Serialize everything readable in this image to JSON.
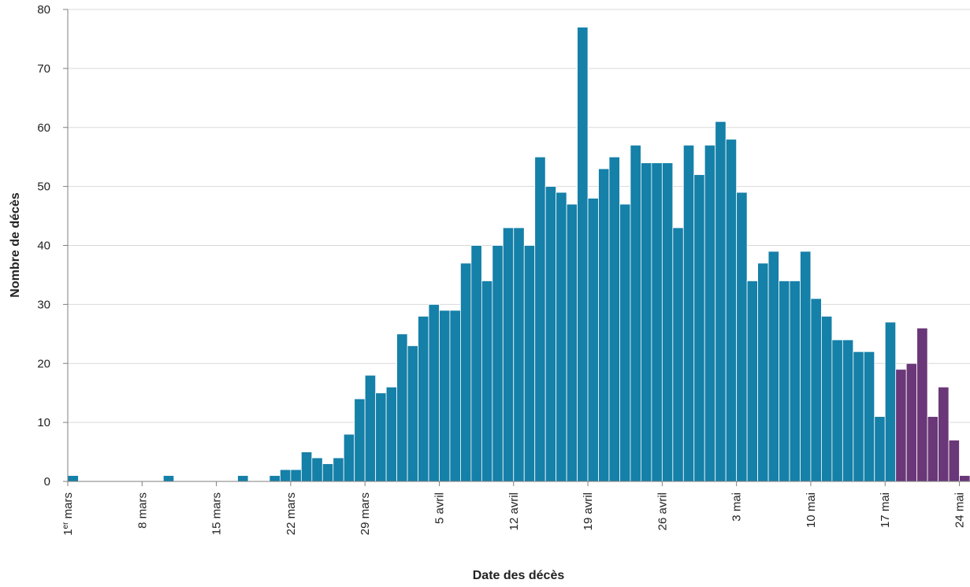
{
  "chart_data": {
    "type": "bar",
    "xlabel": "Date des décès",
    "ylabel": "Nombre de décès",
    "ylim": [
      0,
      80
    ],
    "y_ticks": [
      0,
      10,
      20,
      30,
      40,
      50,
      60,
      70,
      80
    ],
    "grid": true,
    "x_tick_labels": [
      {
        "day": 1,
        "label": "1",
        "sup": "er",
        "suffix": " mars"
      },
      {
        "day": 8,
        "label": "8 mars"
      },
      {
        "day": 15,
        "label": "15 mars"
      },
      {
        "day": 22,
        "label": "22 mars"
      },
      {
        "day": 29,
        "label": "29 mars"
      },
      {
        "day": 36,
        "label": "5 avril"
      },
      {
        "day": 43,
        "label": "12 avril"
      },
      {
        "day": 50,
        "label": "19 avril"
      },
      {
        "day": 57,
        "label": "26 avril"
      },
      {
        "day": 64,
        "label": "3 mai"
      },
      {
        "day": 71,
        "label": "10 mai"
      },
      {
        "day": 78,
        "label": "17 mai"
      },
      {
        "day": 85,
        "label": "24 mai"
      }
    ],
    "first_day": 1,
    "values": [
      1,
      0,
      0,
      0,
      0,
      0,
      0,
      0,
      0,
      1,
      0,
      0,
      0,
      0,
      0,
      0,
      1,
      0,
      0,
      1,
      2,
      2,
      5,
      4,
      3,
      4,
      8,
      14,
      18,
      15,
      16,
      25,
      23,
      28,
      30,
      29,
      29,
      37,
      40,
      34,
      40,
      43,
      43,
      40,
      55,
      50,
      49,
      47,
      77,
      48,
      53,
      55,
      47,
      57,
      54,
      54,
      54,
      43,
      57,
      52,
      57,
      61,
      58,
      49,
      34,
      37,
      39,
      34,
      34,
      39,
      31,
      28,
      24,
      24,
      22,
      22,
      11,
      27,
      19,
      20,
      26,
      11,
      16,
      7,
      1
    ],
    "colors": {
      "consolidated": "#1580a8",
      "provisional": "#6a3778",
      "grid": "#d9d9d9",
      "axis": "#7f7f7f",
      "bar_edge": "#ffffff"
    },
    "provisional_from_index": 78
  }
}
